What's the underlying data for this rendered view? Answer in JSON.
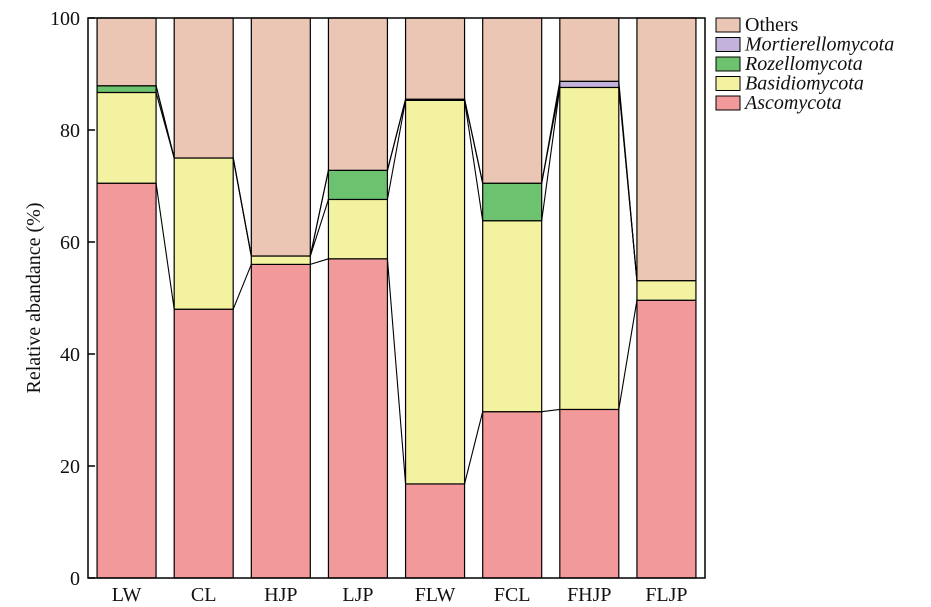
{
  "chart_data": {
    "type": "bar",
    "stacked": true,
    "categories": [
      "LW",
      "CL",
      "HJP",
      "LJP",
      "FLW",
      "FCL",
      "FHJP",
      "FLJP"
    ],
    "series": [
      {
        "name": "Ascomycota",
        "color": "#f2999b",
        "italic": true,
        "values": [
          70.5,
          48.0,
          56.0,
          57.0,
          16.8,
          29.7,
          30.1,
          49.6
        ]
      },
      {
        "name": "Basidiomycota",
        "color": "#f2f2a0",
        "italic": true,
        "values": [
          16.2,
          27.0,
          1.5,
          10.6,
          68.5,
          34.1,
          57.5,
          3.5
        ]
      },
      {
        "name": "Rozellomycota",
        "color": "#6cc26e",
        "italic": true,
        "values": [
          1.2,
          0.0,
          0.0,
          5.2,
          0.2,
          6.7,
          0.0,
          0.0
        ]
      },
      {
        "name": "Mortierellomycota",
        "color": "#c3b3dc",
        "italic": true,
        "values": [
          0.0,
          0.0,
          0.0,
          0.0,
          0.0,
          0.0,
          1.1,
          0.0
        ]
      },
      {
        "name": "Others",
        "color": "#ebc6b4",
        "italic": false,
        "values": [
          12.1,
          25.0,
          42.5,
          27.2,
          14.5,
          29.5,
          11.3,
          46.9
        ]
      }
    ],
    "ylabel": "Relative abandance (%)",
    "xlabel": "",
    "title": "",
    "ylim": [
      0,
      100
    ],
    "yticks": [
      0,
      20,
      40,
      60,
      80,
      100
    ],
    "grid": false,
    "legend_position": "top-right",
    "legend_order": [
      "Others",
      "Mortierellomycota",
      "Rozellomycota",
      "Basidiomycota",
      "Ascomycota"
    ],
    "connector_lines": true
  }
}
